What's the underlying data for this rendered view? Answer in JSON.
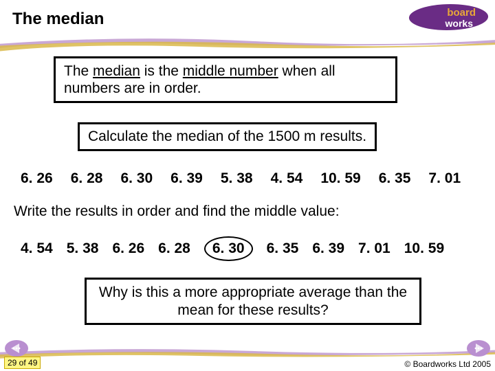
{
  "title": "The median",
  "logo": {
    "brand_part1": "board",
    "brand_part2": "works"
  },
  "definition": {
    "prefix": "The ",
    "term": "median",
    "mid": " is the ",
    "emph": "middle number",
    "suffix": " when all numbers are in order."
  },
  "prompt": "Calculate the median of the 1500 m results.",
  "unsorted": [
    "6. 26",
    "6. 28",
    "6. 30",
    "6. 39",
    "5. 38",
    "4. 54",
    "10. 59",
    "6. 35",
    "7. 01"
  ],
  "instruction": "Write the results in order and find the middle value:",
  "sorted": [
    "4. 54",
    "5. 38",
    "6. 26",
    "6. 28",
    "6. 30",
    "6. 35",
    "6. 39",
    "7. 01",
    "10. 59"
  ],
  "median_index": 4,
  "question": "Why is this a more appropriate average than the mean for these results?",
  "pager": "29 of 49",
  "copyright": "© Boardworks Ltd 2005",
  "colors": {
    "swoosh_purple": "#c9a8d6",
    "swoosh_gold": "#d9b84a",
    "logo_purple": "#6a2c85",
    "nav_purple": "#b98fd0"
  }
}
